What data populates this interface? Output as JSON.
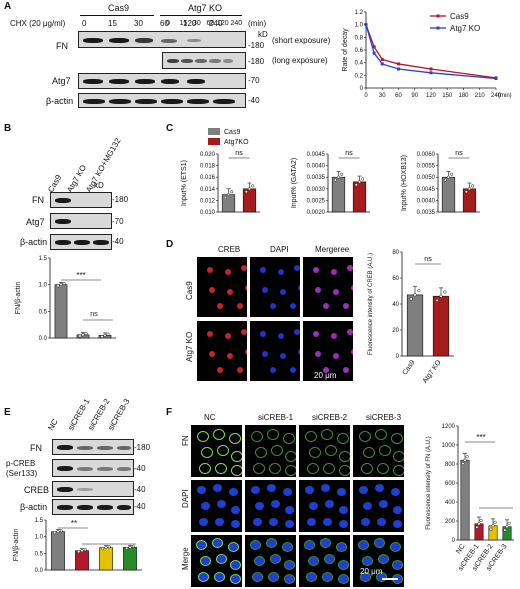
{
  "panels": {
    "A": {
      "letter": "A",
      "treatment": "CHX (20 μg/ml)",
      "group_cas9": "Cas9",
      "group_ko": "Atg7 KO",
      "times_cas9": [
        "0",
        "15",
        "30",
        "60",
        "120",
        "240"
      ],
      "times_ko": [
        "0",
        "15",
        "30",
        "60",
        "120",
        "240"
      ],
      "time_unit": "(min)",
      "kd": "kD",
      "row_fn": "FN",
      "row_atg7": "Atg7",
      "row_actin": "β-actin",
      "mw_180a": "-180",
      "mw_180b": "-180",
      "mw_70": "-70",
      "mw_40": "-40",
      "short_exposure": "(short exposure)",
      "long_exposure": "(long exposure)"
    },
    "B": {
      "letter": "B",
      "lanes": [
        "Cas9",
        "Atg7 KO",
        "Atg7 KO+MG132"
      ],
      "kd": "kD",
      "row_fn": "FN",
      "row_atg7": "Atg7",
      "row_actin": "β-actin",
      "mw_180": "-180",
      "mw_70": "-70",
      "mw_40": "-40",
      "sig1": "***",
      "sig2": "ns"
    },
    "C": {
      "letter": "C"
    },
    "D": {
      "letter": "D",
      "col_creb": "CREB",
      "col_dapi": "DAPI",
      "col_merge": "Mergeree",
      "row_cas9": "Cas9",
      "row_ko": "Atg7 KO",
      "scale": "20 μm",
      "sig": "ns"
    },
    "E": {
      "letter": "E",
      "lanes": [
        "NC",
        "siCREB-1",
        "siCREB-2",
        "siCREB-3"
      ],
      "row_fn": "FN",
      "row_pcreb": "p-CREB",
      "row_pcreb2": "(Ser133)",
      "row_creb": "CREB",
      "row_actin": "β-actin",
      "mw_180": "-180",
      "mw_40a": "-40",
      "mw_40b": "-40",
      "mw_40c": "-40",
      "sig": "**"
    },
    "F": {
      "letter": "F",
      "cols": [
        "NC",
        "siCREB-1",
        "siCREB-2",
        "siCREB-3"
      ],
      "row_fn": "FN",
      "row_dapi": "DAPI",
      "row_merge": "Merge",
      "scale": "20 μm",
      "sig": "***"
    }
  },
  "chart_data": [
    {
      "id": "A-decay",
      "type": "line",
      "ylabel": "Rate of decay",
      "xlabel": "(min)",
      "x": [
        0,
        15,
        30,
        60,
        120,
        240
      ],
      "x_ticks": [
        "0",
        "30",
        "60",
        "90",
        "120",
        "150",
        "180",
        "210",
        "240"
      ],
      "y_ticks": [
        "0",
        "0.2",
        "0.4",
        "0.6",
        "0.8",
        "1.0",
        "1.2"
      ],
      "ylim": [
        0,
        1.2
      ],
      "xlim": [
        0,
        240
      ],
      "series": [
        {
          "name": "Cas9",
          "color": "#b2182b",
          "values": [
            1.0,
            0.65,
            0.45,
            0.38,
            0.3,
            0.16
          ]
        },
        {
          "name": "Atg7 KO",
          "color": "#2b3fd6",
          "values": [
            1.0,
            0.55,
            0.38,
            0.3,
            0.24,
            0.15
          ]
        }
      ],
      "legend_position": "top-right"
    },
    {
      "id": "B-quant",
      "type": "bar",
      "ylabel": "FN/β-actin",
      "categories": [
        "Cas9",
        "Atg7 KO",
        "Atg7 KO+MG132"
      ],
      "values": [
        1.0,
        0.06,
        0.05
      ],
      "y_ticks": [
        "0.0",
        "0.5",
        "1.0",
        "1.5"
      ],
      "ylim": [
        0,
        1.5
      ]
    },
    {
      "id": "C-ETS1",
      "type": "bar",
      "ylabel": "Input% (ETS1)",
      "categories": [
        "Cas9",
        "Atg7KO"
      ],
      "values": [
        0.013,
        0.014
      ],
      "y_ticks": [
        "0.010",
        "0.012",
        "0.014",
        "0.016",
        "0.018",
        "0.020"
      ],
      "ylim": [
        0.01,
        0.02
      ],
      "legend": [
        "Cas9",
        "Atg7KO"
      ],
      "colors": [
        "#7f7f7f",
        "#a51c1c"
      ],
      "sig": "ns"
    },
    {
      "id": "C-GATA2",
      "type": "bar",
      "ylabel": "Input% (GATA2)",
      "categories": [
        "Cas9",
        "Atg7KO"
      ],
      "values": [
        0.0035,
        0.0033
      ],
      "y_ticks": [
        "0.0020",
        "0.0025",
        "0.0030",
        "0.0035",
        "0.0040",
        "0.0045"
      ],
      "ylim": [
        0.002,
        0.0045
      ],
      "colors": [
        "#7f7f7f",
        "#a51c1c"
      ],
      "sig": "ns"
    },
    {
      "id": "C-HOXB13",
      "type": "bar",
      "ylabel": "Input% (HOXB13)",
      "categories": [
        "Cas9",
        "Atg7KO"
      ],
      "values": [
        0.005,
        0.0045
      ],
      "y_ticks": [
        "0.0035",
        "0.0040",
        "0.0045",
        "0.0050",
        "0.0055",
        "0.0060"
      ],
      "ylim": [
        0.0035,
        0.006
      ],
      "colors": [
        "#7f7f7f",
        "#a51c1c"
      ],
      "sig": "ns"
    },
    {
      "id": "D-quant",
      "type": "bar",
      "ylabel": "Fluorescence intensity of CREB (A.U.)",
      "categories": [
        "Cas9",
        "Atg7 KO"
      ],
      "values": [
        47,
        46
      ],
      "y_ticks": [
        "0",
        "20",
        "40",
        "60",
        "80"
      ],
      "ylim": [
        0,
        80
      ],
      "colors": [
        "#7f7f7f",
        "#a51c1c"
      ]
    },
    {
      "id": "E-quant",
      "type": "bar",
      "ylabel": "FN/β-actin",
      "categories": [
        "NC",
        "siCREB-1",
        "siCREB-2",
        "siCREB-3"
      ],
      "values": [
        1.15,
        0.58,
        0.67,
        0.68
      ],
      "y_ticks": [
        "0.0",
        "0.5",
        "1.0",
        "1.5"
      ],
      "ylim": [
        0,
        1.5
      ],
      "colors": [
        "#7f7f7f",
        "#b2182b",
        "#e5c100",
        "#2a8a2a"
      ]
    },
    {
      "id": "F-quant",
      "type": "bar",
      "ylabel": "Fluorescence intensity of FN (A.U.)",
      "categories": [
        "NC",
        "siCREB-1",
        "siCREB-2",
        "siCREB-3"
      ],
      "values": [
        840,
        170,
        150,
        140
      ],
      "y_ticks": [
        "0",
        "200",
        "400",
        "600",
        "800",
        "1000",
        "1200"
      ],
      "ylim": [
        0,
        1200
      ],
      "colors": [
        "#7f7f7f",
        "#b2182b",
        "#e5c100",
        "#2a8a2a"
      ]
    }
  ]
}
